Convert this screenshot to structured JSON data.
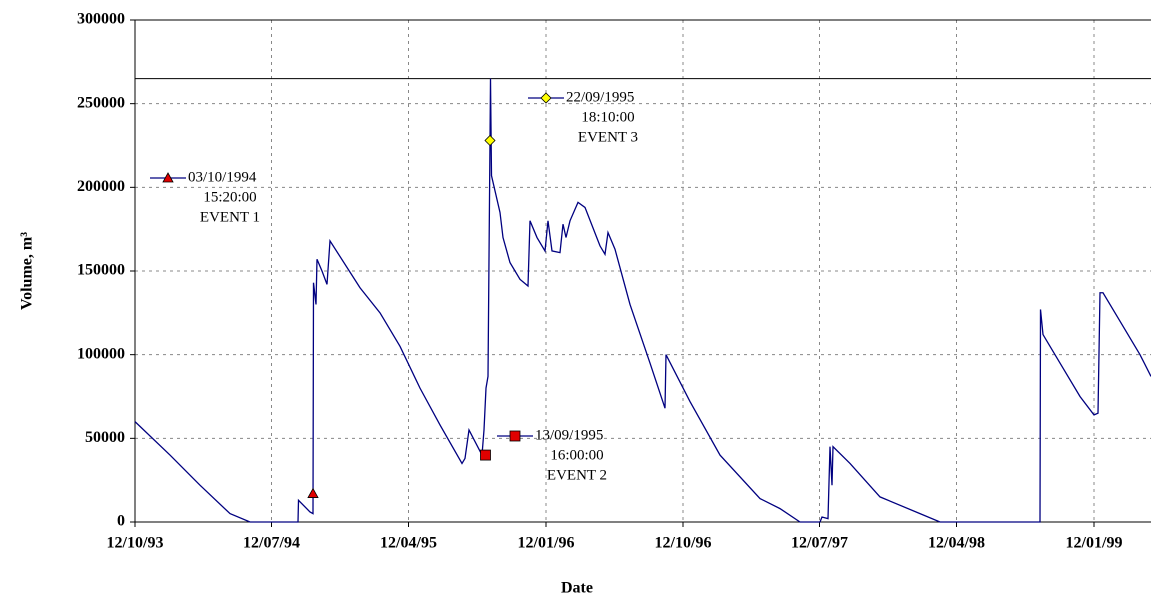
{
  "chart_data": {
    "type": "line",
    "x_label": "Date",
    "y_label": "Volume, m³",
    "color": "#000080",
    "hline": 265000,
    "grid": true,
    "xlim": [
      "12/10/93",
      "06/05/99"
    ],
    "xticks": [
      "12/10/93",
      "12/07/94",
      "12/04/95",
      "12/01/96",
      "12/10/96",
      "12/07/97",
      "12/04/98",
      "12/01/99"
    ],
    "ylim": [
      0,
      300000
    ],
    "yticks": [
      0,
      50000,
      100000,
      150000,
      200000,
      250000,
      300000
    ],
    "x": [
      "12/10/93",
      "21/12/93",
      "19/02/94",
      "20/04/94",
      "30/05/94",
      "03/09/94",
      "04/09/94",
      "27/09/94",
      "03/10/94",
      "04/10/94",
      "09/10/94",
      "11/10/94",
      "21/10/94",
      "31/10/94",
      "06/11/94",
      "05/01/95",
      "14/02/95",
      "26/03/95",
      "05/05/95",
      "14/06/95",
      "28/07/95",
      "03/08/95",
      "11/08/95",
      "06/09/95",
      "10/09/95",
      "14/09/95",
      "18/09/95",
      "22/09/95",
      "23/09/95",
      "25/09/95",
      "12/10/95",
      "18/10/95",
      "01/11/95",
      "21/11/95",
      "07/12/95",
      "11/12/95",
      "25/12/95",
      "10/01/96",
      "16/01/96",
      "24/01/96",
      "09/02/96",
      "15/02/96",
      "21/02/96",
      "29/02/96",
      "16/03/96",
      "30/03/96",
      "29/04/96",
      "09/05/96",
      "15/05/96",
      "29/05/96",
      "28/06/96",
      "07/08/96",
      "06/09/96",
      "08/09/96",
      "26/10/96",
      "25/12/96",
      "15/03/97",
      "24/04/97",
      "03/06/97",
      "13/07/97",
      "17/07/97",
      "29/07/97",
      "02/08/97",
      "06/08/97",
      "08/08/97",
      "11/09/97",
      "10/11/97",
      "29/01/98",
      "10/03/98",
      "26/09/98",
      "27/09/98",
      "02/10/98",
      "05/11/98",
      "15/12/98",
      "12/01/99",
      "20/01/99",
      "24/01/99",
      "30/01/99",
      "05/03/99",
      "14/04/99",
      "06/05/99"
    ],
    "values": [
      60000,
      40000,
      22000,
      5000,
      0,
      0,
      13000,
      6000,
      5000,
      143000,
      130000,
      157000,
      150000,
      142000,
      168000,
      140000,
      125000,
      105000,
      80000,
      58000,
      35000,
      38000,
      55000,
      40000,
      55000,
      80000,
      87000,
      228000,
      265000,
      207000,
      185000,
      170000,
      155000,
      145000,
      141000,
      180000,
      170000,
      162000,
      180000,
      162000,
      161000,
      178000,
      170000,
      180000,
      191000,
      188000,
      165000,
      160000,
      173000,
      163000,
      130000,
      95000,
      68000,
      100000,
      72000,
      40000,
      14000,
      8000,
      0,
      0,
      3000,
      2000,
      45000,
      22000,
      45000,
      35000,
      15000,
      5000,
      0,
      0,
      127000,
      112000,
      95000,
      75000,
      64000,
      65000,
      137000,
      137000,
      120000,
      100000,
      87000
    ],
    "events": [
      {
        "date": "03/10/1994",
        "time": "15:20:00",
        "label": "EVENT 1",
        "value": 17000,
        "marker": "triangle",
        "color": "#e00000"
      },
      {
        "date": "13/09/1995",
        "time": "16:00:00",
        "label": "EVENT 2",
        "value": 40000,
        "marker": "square",
        "color": "#e00000"
      },
      {
        "date": "22/09/1995",
        "time": "18:10:00",
        "label": "EVENT 3",
        "value": 228000,
        "marker": "diamond",
        "color": "#ffff00"
      }
    ]
  }
}
